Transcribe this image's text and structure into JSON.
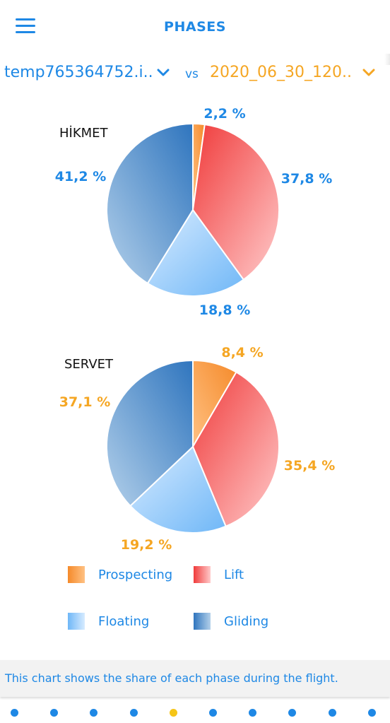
{
  "header": {
    "title": "PHASES",
    "menu_icon": "menu-icon"
  },
  "selectors": {
    "left": {
      "label": "temp765364752.i..",
      "color": "#1e88e5"
    },
    "vs": "vs",
    "right": {
      "label": "2020_06_30_120..",
      "color": "#f5a623"
    }
  },
  "colors": {
    "prospecting": [
      "#ffc183",
      "#f58a2a"
    ],
    "lift": [
      "#ffcaca",
      "#f03b3b"
    ],
    "floating": [
      "#d7ebff",
      "#6fb7f7"
    ],
    "gliding": [
      "#b3d0ea",
      "#2f75be"
    ]
  },
  "chart_data": [
    {
      "type": "pie",
      "title": "HİKMET",
      "categories": [
        "Prospecting",
        "Lift",
        "Floating",
        "Gliding"
      ],
      "values": [
        2.2,
        37.8,
        18.8,
        41.2
      ],
      "labels": [
        "2,2 %",
        "37,8 %",
        "18,8 %",
        "41,2 %"
      ],
      "label_color": "#1e88e5"
    },
    {
      "type": "pie",
      "title": "SERVET",
      "categories": [
        "Prospecting",
        "Lift",
        "Floating",
        "Gliding"
      ],
      "values": [
        8.4,
        35.4,
        19.2,
        37.1
      ],
      "labels": [
        "8,4 %",
        "35,4 %",
        "19,2 %",
        "37,1 %"
      ],
      "label_color": "#f5a623"
    }
  ],
  "legend": [
    {
      "label": "Prospecting",
      "key": "prospecting"
    },
    {
      "label": "Lift",
      "key": "lift"
    },
    {
      "label": "Floating",
      "key": "floating"
    },
    {
      "label": "Gliding",
      "key": "gliding"
    }
  ],
  "footer": {
    "text": "This chart shows the share of each phase during the flight."
  },
  "pager": {
    "count": 10,
    "active_index": 4,
    "color": "#1e88e5",
    "active_color": "#f5c518"
  }
}
